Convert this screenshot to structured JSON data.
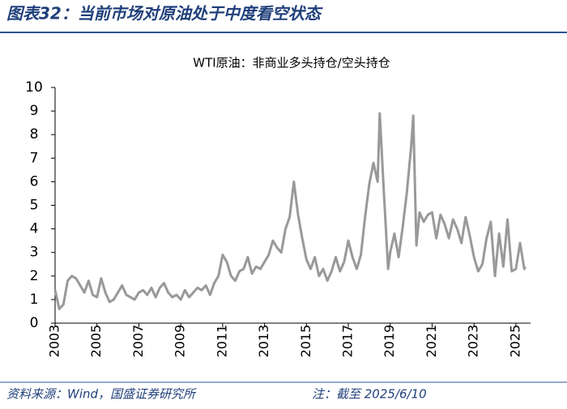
{
  "header": {
    "title": "图表32：当前市场对原油处于中度看空状态"
  },
  "chart_data": {
    "type": "line",
    "title": "WTI原油：非商业多头持仓/空头持仓",
    "x": [
      2003.0,
      2003.2,
      2003.4,
      2003.6,
      2003.8,
      2004.0,
      2004.2,
      2004.4,
      2004.6,
      2004.8,
      2005.0,
      2005.2,
      2005.4,
      2005.6,
      2005.8,
      2006.0,
      2006.2,
      2006.4,
      2006.6,
      2006.8,
      2007.0,
      2007.2,
      2007.4,
      2007.6,
      2007.8,
      2008.0,
      2008.2,
      2008.4,
      2008.6,
      2008.8,
      2009.0,
      2009.2,
      2009.4,
      2009.6,
      2009.8,
      2010.0,
      2010.2,
      2010.4,
      2010.6,
      2010.8,
      2011.0,
      2011.2,
      2011.4,
      2011.6,
      2011.8,
      2012.0,
      2012.2,
      2012.4,
      2012.6,
      2012.8,
      2013.0,
      2013.2,
      2013.4,
      2013.6,
      2013.8,
      2014.0,
      2014.2,
      2014.4,
      2014.6,
      2014.8,
      2015.0,
      2015.2,
      2015.4,
      2015.6,
      2015.8,
      2016.0,
      2016.2,
      2016.4,
      2016.6,
      2016.8,
      2017.0,
      2017.2,
      2017.4,
      2017.6,
      2017.8,
      2018.0,
      2018.2,
      2018.4,
      2018.5,
      2018.7,
      2018.9,
      2019.0,
      2019.2,
      2019.4,
      2019.6,
      2019.8,
      2020.0,
      2020.1,
      2020.25,
      2020.4,
      2020.6,
      2020.8,
      2021.0,
      2021.2,
      2021.4,
      2021.6,
      2021.8,
      2022.0,
      2022.2,
      2022.4,
      2022.6,
      2022.8,
      2023.0,
      2023.2,
      2023.4,
      2023.6,
      2023.8,
      2024.0,
      2024.2,
      2024.4,
      2024.6,
      2024.8,
      2025.0,
      2025.2,
      2025.4,
      2025.45
    ],
    "series": [
      {
        "name": "WTI原油：非商业多头持仓/空头持仓",
        "color": "#999999",
        "values": [
          1.4,
          0.6,
          0.8,
          1.8,
          2.0,
          1.9,
          1.6,
          1.3,
          1.8,
          1.2,
          1.1,
          1.9,
          1.3,
          0.9,
          1.0,
          1.3,
          1.6,
          1.2,
          1.1,
          1.0,
          1.3,
          1.4,
          1.2,
          1.5,
          1.1,
          1.5,
          1.7,
          1.3,
          1.1,
          1.2,
          1.0,
          1.4,
          1.1,
          1.3,
          1.5,
          1.4,
          1.6,
          1.2,
          1.7,
          2.0,
          2.9,
          2.6,
          2.0,
          1.8,
          2.2,
          2.3,
          2.8,
          2.1,
          2.4,
          2.3,
          2.6,
          2.9,
          3.5,
          3.2,
          3.0,
          4.0,
          4.5,
          6.0,
          4.6,
          3.6,
          2.7,
          2.3,
          2.8,
          2.0,
          2.3,
          1.8,
          2.2,
          2.8,
          2.2,
          2.6,
          3.5,
          2.8,
          2.3,
          2.9,
          4.5,
          5.9,
          6.8,
          6.0,
          8.9,
          5.5,
          2.3,
          3.0,
          3.8,
          2.8,
          4.1,
          5.6,
          7.5,
          8.8,
          3.3,
          4.7,
          4.3,
          4.6,
          4.7,
          3.6,
          4.6,
          4.2,
          3.6,
          4.4,
          4.0,
          3.4,
          4.5,
          3.7,
          2.8,
          2.2,
          2.5,
          3.6,
          4.3,
          2.0,
          3.8,
          2.4,
          4.4,
          2.2,
          2.3,
          3.4,
          2.3,
          2.4
        ]
      }
    ],
    "xlim": [
      2003,
      2025.7
    ],
    "xticks": [
      2003,
      2005,
      2007,
      2009,
      2011,
      2013,
      2015,
      2017,
      2019,
      2021,
      2023,
      2025
    ],
    "ylim": [
      0,
      10
    ],
    "yticks": [
      0,
      1,
      2,
      3,
      4,
      5,
      6,
      7,
      8,
      9,
      10
    ]
  },
  "footer": {
    "source": "资料来源：Wind，国盛证券研究所",
    "note": "注：截至 2025/6/10"
  }
}
